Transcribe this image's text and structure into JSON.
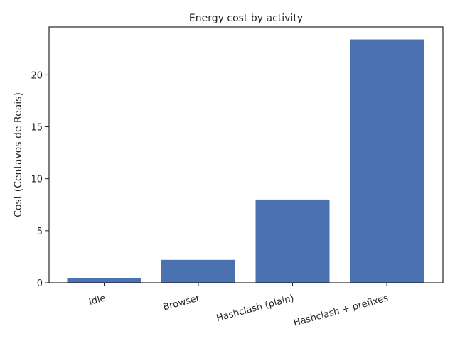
{
  "chart_data": {
    "type": "bar",
    "title": "Energy cost by activity",
    "xlabel": "",
    "ylabel": "Cost (Centavos de Reais)",
    "categories": [
      "Idle",
      "Browser",
      "Hashclash (plain)",
      "Hashclash + prefixes"
    ],
    "values": [
      0.45,
      2.2,
      8.0,
      23.4
    ],
    "ylim": [
      0,
      24.6
    ],
    "yticks": [
      0,
      5,
      10,
      15,
      20
    ],
    "grid": false,
    "bar_color": "#4a72b0"
  }
}
